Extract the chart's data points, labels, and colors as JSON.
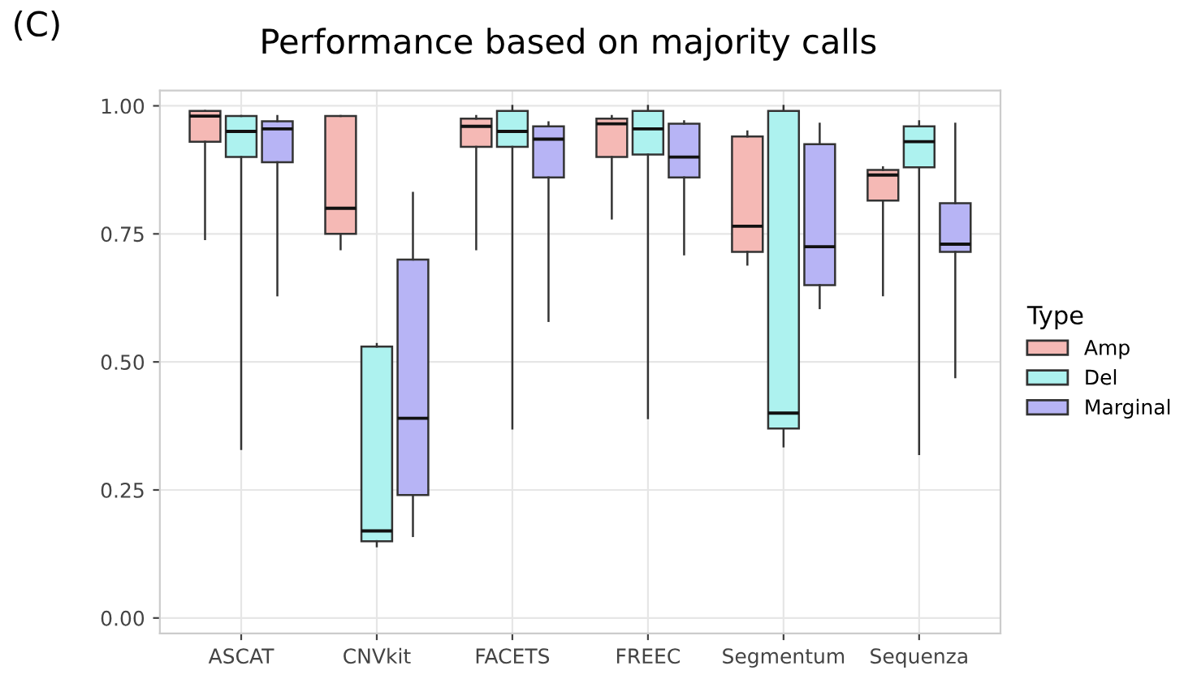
{
  "chart_data": {
    "type": "box",
    "title": "Performance based on majority calls",
    "annotations": [
      "(C)"
    ],
    "categories": [
      "ASCAT",
      "CNVkit",
      "FACETS",
      "FREEC",
      "Segmentum",
      "Sequenza"
    ],
    "legend_title": "Type",
    "legend": "right",
    "grid": true,
    "ylim": [
      -0.03,
      1.03
    ],
    "yticks": [
      {
        "value": 0,
        "label": "0.00"
      },
      {
        "value": 0.25,
        "label": "0.25"
      },
      {
        "value": 0.5,
        "label": "0.50"
      },
      {
        "value": 0.75,
        "label": "0.75"
      },
      {
        "value": 1,
        "label": "1.00"
      }
    ],
    "series": [
      {
        "name": "Amp",
        "color": "#f5b9b5",
        "boxes": [
          {
            "low": 0.74,
            "q1": 0.93,
            "median": 0.98,
            "q3": 0.99,
            "high": 0.99
          },
          {
            "low": 0.72,
            "q1": 0.75,
            "median": 0.8,
            "q3": 0.98,
            "high": 0.98
          },
          {
            "low": 0.72,
            "q1": 0.92,
            "median": 0.96,
            "q3": 0.975,
            "high": 0.98
          },
          {
            "low": 0.78,
            "q1": 0.9,
            "median": 0.965,
            "q3": 0.975,
            "high": 0.98
          },
          {
            "low": 0.69,
            "q1": 0.715,
            "median": 0.765,
            "q3": 0.94,
            "high": 0.95
          },
          {
            "low": 0.63,
            "q1": 0.815,
            "median": 0.865,
            "q3": 0.875,
            "high": 0.88
          }
        ]
      },
      {
        "name": "Del",
        "color": "#adf2ef",
        "boxes": [
          {
            "low": 0.33,
            "q1": 0.9,
            "median": 0.95,
            "q3": 0.98,
            "high": 0.98
          },
          {
            "low": 0.14,
            "q1": 0.15,
            "median": 0.17,
            "q3": 0.53,
            "high": 0.535
          },
          {
            "low": 0.37,
            "q1": 0.92,
            "median": 0.95,
            "q3": 0.99,
            "high": 1.0
          },
          {
            "low": 0.39,
            "q1": 0.905,
            "median": 0.955,
            "q3": 0.99,
            "high": 1.0
          },
          {
            "low": 0.335,
            "q1": 0.37,
            "median": 0.4,
            "q3": 0.99,
            "high": 1.0
          },
          {
            "low": 0.32,
            "q1": 0.88,
            "median": 0.93,
            "q3": 0.96,
            "high": 0.97
          }
        ]
      },
      {
        "name": "Marginal",
        "color": "#b7b4f5",
        "boxes": [
          {
            "low": 0.63,
            "q1": 0.89,
            "median": 0.955,
            "q3": 0.97,
            "high": 0.98
          },
          {
            "low": 0.16,
            "q1": 0.24,
            "median": 0.39,
            "q3": 0.7,
            "high": 0.83
          },
          {
            "low": 0.58,
            "q1": 0.86,
            "median": 0.935,
            "q3": 0.96,
            "high": 0.968
          },
          {
            "low": 0.71,
            "q1": 0.86,
            "median": 0.9,
            "q3": 0.965,
            "high": 0.97
          },
          {
            "low": 0.605,
            "q1": 0.65,
            "median": 0.725,
            "q3": 0.925,
            "high": 0.965
          },
          {
            "low": 0.47,
            "q1": 0.715,
            "median": 0.73,
            "q3": 0.81,
            "high": 0.965
          }
        ]
      }
    ]
  }
}
